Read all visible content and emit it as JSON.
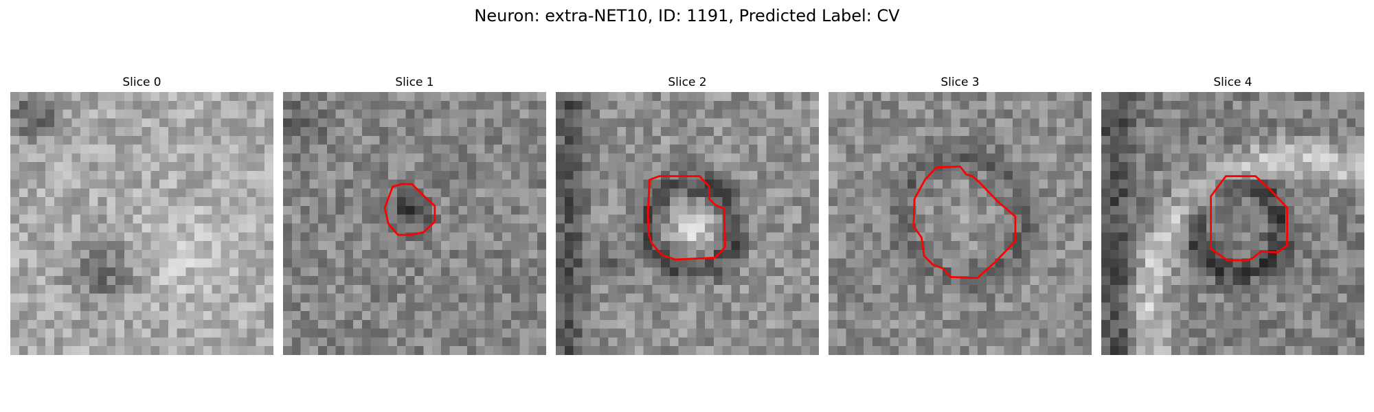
{
  "figure": {
    "title": "Neuron: extra-NET10, ID: 1191, Predicted Label: CV",
    "contour_color": "#ff0000"
  },
  "panels": [
    {
      "title": "Slice 0",
      "has_contour": false,
      "base_gray": 170
    },
    {
      "title": "Slice 1",
      "has_contour": true,
      "base_gray": 135
    },
    {
      "title": "Slice 2",
      "has_contour": true,
      "base_gray": 145
    },
    {
      "title": "Slice 3",
      "has_contour": true,
      "base_gray": 140
    },
    {
      "title": "Slice 4",
      "has_contour": true,
      "base_gray": 130
    }
  ]
}
